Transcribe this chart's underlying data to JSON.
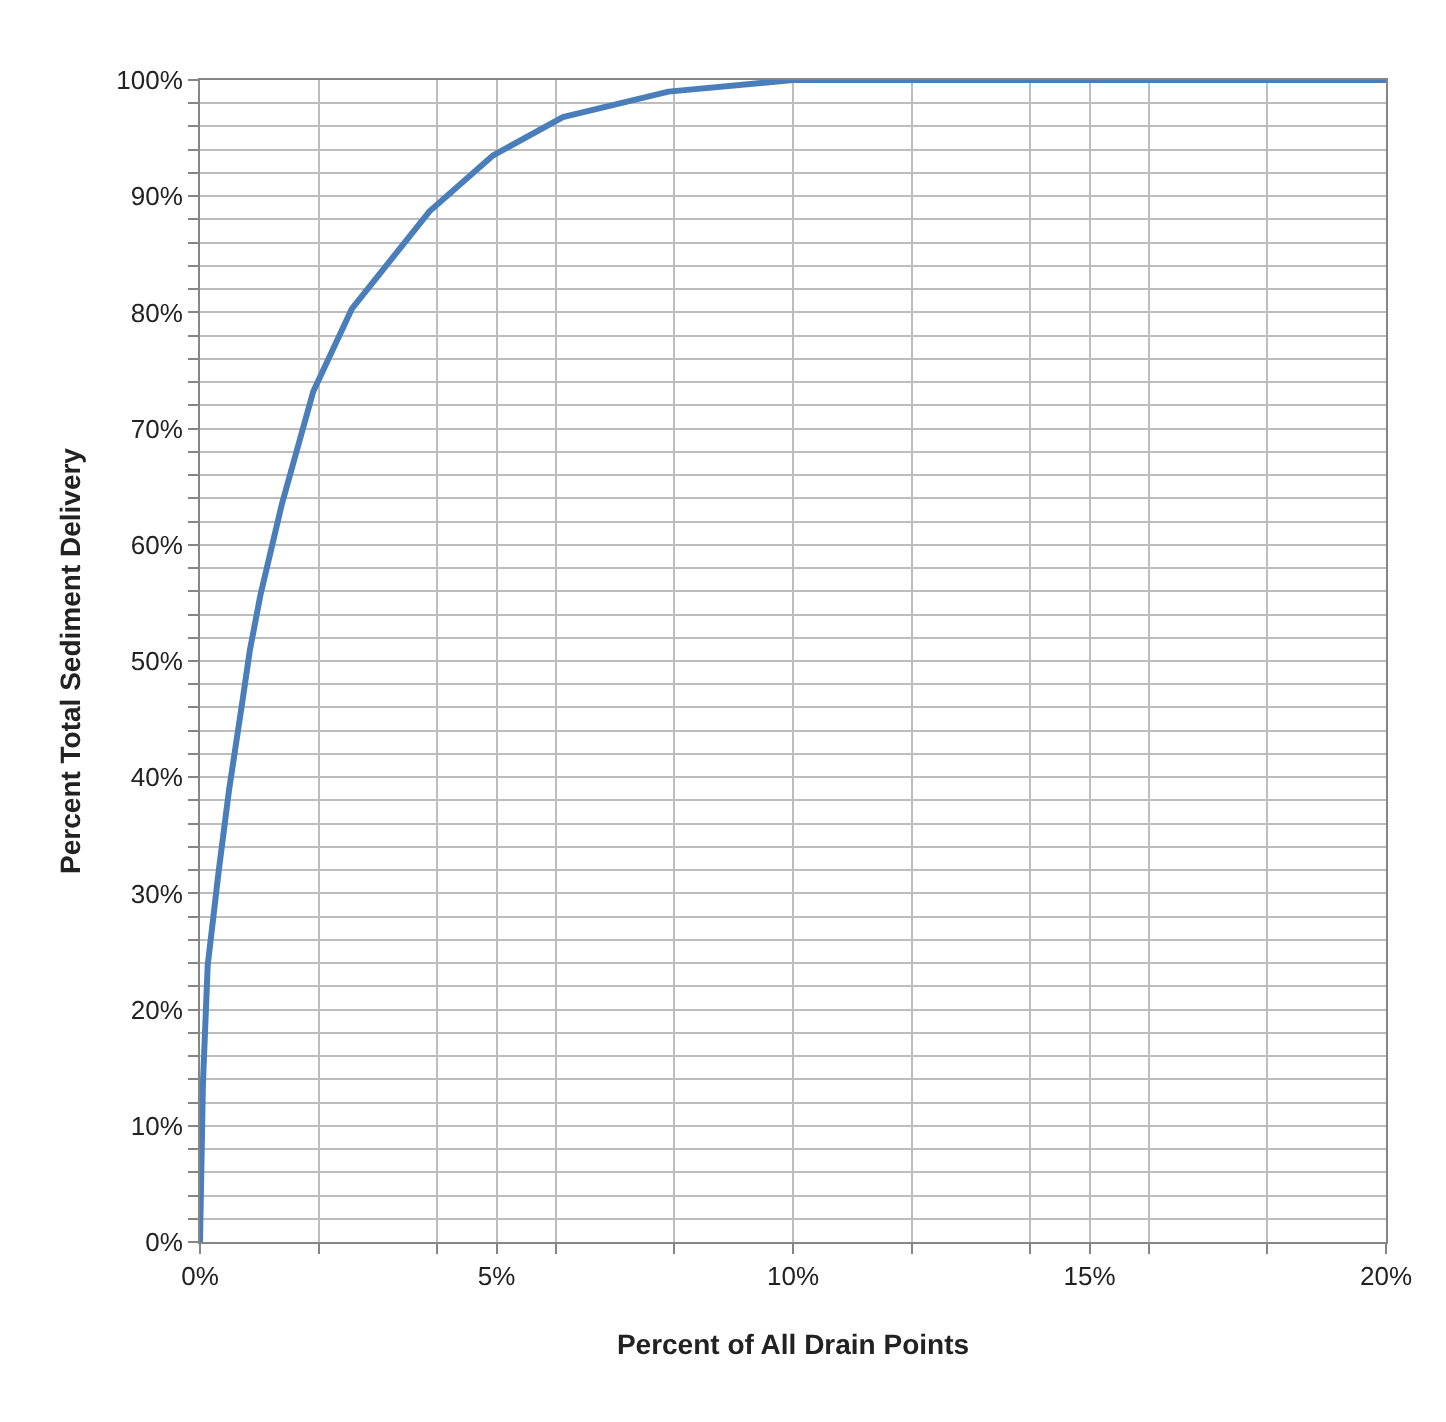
{
  "chart_data": {
    "type": "line",
    "xlabel": "Percent of All Drain Points",
    "ylabel": "Percent Total Sediment Delivery",
    "series": [
      {
        "color": "#4a7ebb",
        "x": [
          0,
          0.05,
          0.13,
          0.31,
          0.49,
          0.72,
          0.84,
          1.02,
          1.38,
          1.91,
          2.56,
          3.87,
          4.94,
          6.12,
          7.9,
          10,
          20
        ],
        "values": [
          0,
          13.7,
          23.8,
          31.7,
          38.9,
          46.7,
          50.9,
          55.7,
          63.5,
          73.2,
          80.3,
          88.7,
          93.5,
          96.8,
          99.0,
          100,
          100
        ]
      }
    ],
    "xlim": [
      0,
      20
    ],
    "xticks": [
      {
        "value": 0,
        "label": "0%"
      },
      {
        "value": 2,
        "label": null
      },
      {
        "value": 4,
        "label": null
      },
      {
        "value": 5,
        "label": "5%"
      },
      {
        "value": 6,
        "label": null
      },
      {
        "value": 8,
        "label": null
      },
      {
        "value": 10,
        "label": "10%"
      },
      {
        "value": 12,
        "label": null
      },
      {
        "value": 14,
        "label": null
      },
      {
        "value": 15,
        "label": "15%"
      },
      {
        "value": 16,
        "label": null
      },
      {
        "value": 18,
        "label": null
      },
      {
        "value": 20,
        "label": "20%"
      }
    ],
    "ylim": [
      0,
      100
    ],
    "yticks": [
      {
        "value": 0,
        "label": "0%"
      },
      {
        "value": 2,
        "label": null
      },
      {
        "value": 4,
        "label": null
      },
      {
        "value": 6,
        "label": null
      },
      {
        "value": 8,
        "label": null
      },
      {
        "value": 10,
        "label": "10%"
      },
      {
        "value": 12,
        "label": null
      },
      {
        "value": 14,
        "label": null
      },
      {
        "value": 16,
        "label": null
      },
      {
        "value": 18,
        "label": null
      },
      {
        "value": 20,
        "label": "20%"
      },
      {
        "value": 22,
        "label": null
      },
      {
        "value": 24,
        "label": null
      },
      {
        "value": 26,
        "label": null
      },
      {
        "value": 28,
        "label": null
      },
      {
        "value": 30,
        "label": "30%"
      },
      {
        "value": 32,
        "label": null
      },
      {
        "value": 34,
        "label": null
      },
      {
        "value": 36,
        "label": null
      },
      {
        "value": 38,
        "label": null
      },
      {
        "value": 40,
        "label": "40%"
      },
      {
        "value": 42,
        "label": null
      },
      {
        "value": 44,
        "label": null
      },
      {
        "value": 46,
        "label": null
      },
      {
        "value": 48,
        "label": null
      },
      {
        "value": 50,
        "label": "50%"
      },
      {
        "value": 52,
        "label": null
      },
      {
        "value": 54,
        "label": null
      },
      {
        "value": 56,
        "label": null
      },
      {
        "value": 58,
        "label": null
      },
      {
        "value": 60,
        "label": "60%"
      },
      {
        "value": 62,
        "label": null
      },
      {
        "value": 64,
        "label": null
      },
      {
        "value": 66,
        "label": null
      },
      {
        "value": 68,
        "label": null
      },
      {
        "value": 70,
        "label": "70%"
      },
      {
        "value": 72,
        "label": null
      },
      {
        "value": 74,
        "label": null
      },
      {
        "value": 76,
        "label": null
      },
      {
        "value": 78,
        "label": null
      },
      {
        "value": 80,
        "label": "80%"
      },
      {
        "value": 82,
        "label": null
      },
      {
        "value": 84,
        "label": null
      },
      {
        "value": 86,
        "label": null
      },
      {
        "value": 88,
        "label": null
      },
      {
        "value": 90,
        "label": "90%"
      },
      {
        "value": 92,
        "label": null
      },
      {
        "value": 94,
        "label": null
      },
      {
        "value": 96,
        "label": null
      },
      {
        "value": 98,
        "label": null
      },
      {
        "value": 100,
        "label": "100%"
      }
    ],
    "grid": true,
    "marker": "none",
    "line_style": "solid"
  }
}
